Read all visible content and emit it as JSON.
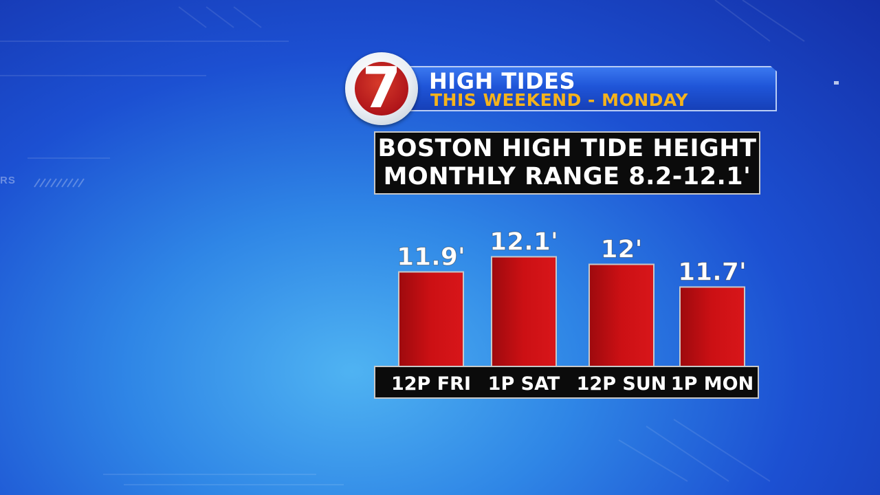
{
  "header": {
    "title": "HIGH TIDES",
    "subtitle": "THIS WEEKEND - MONDAY",
    "logo_label": "7"
  },
  "background_text": "RS",
  "colors": {
    "bar": "#c80f14",
    "subtitle": "#f5b31c",
    "banner": "#1f55d8"
  },
  "chart_data": {
    "type": "bar",
    "title": "BOSTON HIGH TIDE HEIGHT",
    "subtitle": "MONTHLY RANGE 8.2-12.1'",
    "categories": [
      "12P FRI",
      "1P SAT",
      "12P SUN",
      "1P MON"
    ],
    "values": [
      11.9,
      12.1,
      12,
      11.7
    ],
    "data_labels": [
      "11.9'",
      "12.1'",
      "12'",
      "11.7'"
    ],
    "xlabel": "",
    "ylabel": "",
    "grid": false
  }
}
